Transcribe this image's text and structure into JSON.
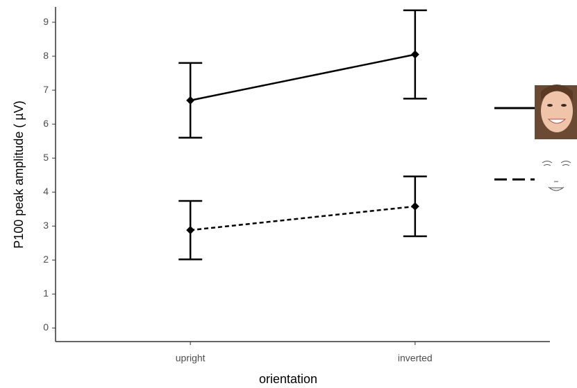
{
  "chart_data": {
    "type": "line",
    "x_label": "orientation",
    "y_label": "P100 peak amplitude ( µV)",
    "categories": [
      "upright",
      "inverted"
    ],
    "series": [
      {
        "color": "#000000",
        "linestyle": "solid",
        "values": [
          6.7,
          8.05
        ],
        "errors": [
          1.1,
          1.3
        ]
      },
      {
        "color": "#000000",
        "linestyle": "dotted",
        "values": [
          2.88,
          3.58
        ],
        "errors": [
          0.86,
          0.88
        ]
      }
    ],
    "ylim": [
      -0.4,
      9.45
    ],
    "yticks": [
      0,
      1,
      2,
      3,
      4,
      5,
      6,
      7,
      8,
      9
    ],
    "grid": false
  }
}
